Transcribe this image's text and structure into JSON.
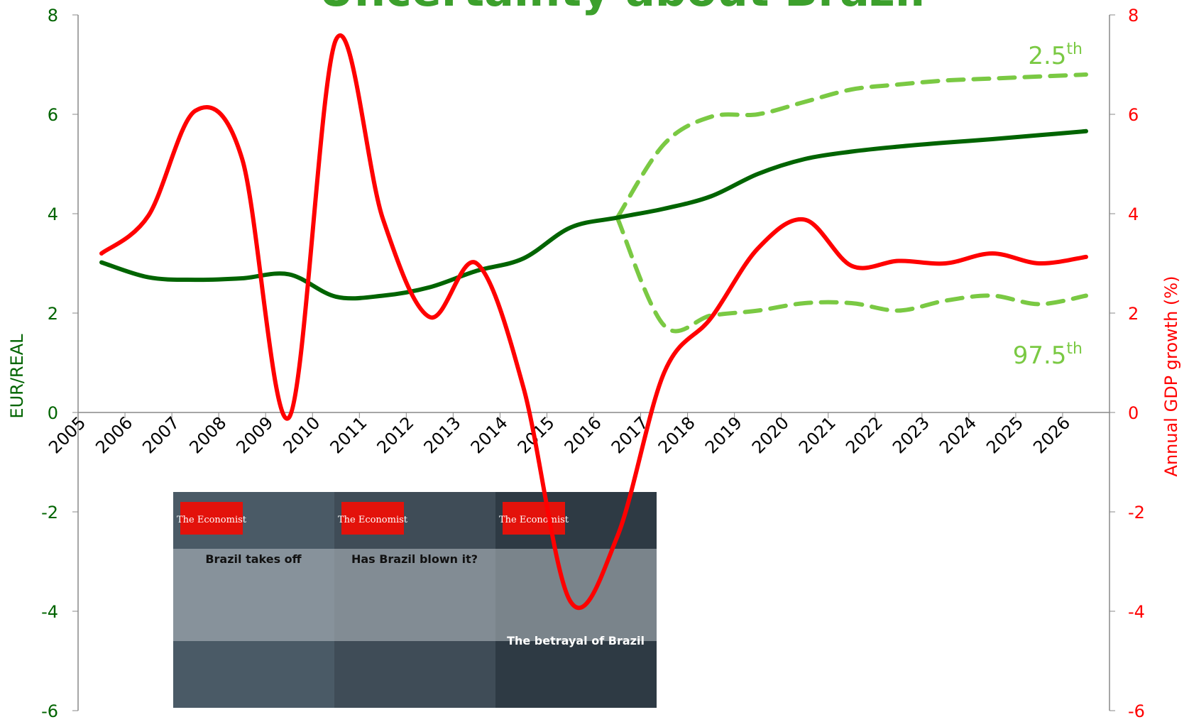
{
  "chart_data": {
    "type": "line",
    "title": "Uncertainty about Brazil",
    "y_label": "EUR/REAL",
    "y2_label": "Annual GDP growth (%)",
    "categories": [
      "2005",
      "2006",
      "2007",
      "2008",
      "2009",
      "2010",
      "2011",
      "2012",
      "2013",
      "2014",
      "2015",
      "2016",
      "2017",
      "2018",
      "2019",
      "2020",
      "2021",
      "2022",
      "2023",
      "2024",
      "2025",
      "2026"
    ],
    "ylim": [
      -6,
      8
    ],
    "yticks": [
      -6,
      -4,
      -2,
      0,
      2,
      4,
      6,
      8
    ],
    "y2lim": [
      -6,
      8
    ],
    "y2ticks": [
      -6,
      -4,
      -2,
      0,
      2,
      4,
      6,
      8
    ],
    "series": [
      {
        "color": "#006400",
        "dash": false,
        "values": [
          3.02,
          2.72,
          2.67,
          2.7,
          2.78,
          2.33,
          2.35,
          2.52,
          2.85,
          3.1,
          3.72,
          3.92,
          4.1,
          4.35,
          4.8,
          5.1,
          5.25,
          5.35,
          5.43,
          5.5,
          5.58,
          5.66
        ]
      },
      {
        "color": "#ff0000",
        "dash": false,
        "axis": "y2",
        "values": [
          3.2,
          3.96,
          6.07,
          5.1,
          -0.1,
          7.5,
          3.9,
          1.92,
          3.0,
          0.5,
          -3.8,
          -2.5,
          0.8,
          1.9,
          3.3,
          3.88,
          2.95,
          3.05,
          3.0,
          3.2,
          3.0,
          3.13
        ]
      },
      {
        "color": "#7ac943",
        "dash": true,
        "values": [
          null,
          null,
          null,
          null,
          null,
          null,
          null,
          null,
          null,
          null,
          null,
          3.92,
          5.4,
          5.95,
          6.0,
          6.25,
          6.5,
          6.6,
          6.68,
          6.72,
          6.76,
          6.8
        ]
      },
      {
        "color": "#7ac943",
        "dash": true,
        "values": [
          null,
          null,
          null,
          null,
          null,
          null,
          null,
          null,
          null,
          null,
          null,
          3.92,
          1.75,
          1.95,
          2.05,
          2.2,
          2.2,
          2.05,
          2.25,
          2.35,
          2.18,
          2.35
        ]
      }
    ],
    "annotations": [
      {
        "text": "2.5",
        "sup": "th"
      },
      {
        "text": "97.5",
        "sup": "th"
      }
    ],
    "covers": [
      {
        "brand": "The Economist",
        "headline": "Brazil takes off"
      },
      {
        "brand": "The Economist",
        "headline": "Has Brazil blown it?"
      },
      {
        "brand": "The Economist",
        "headline": "The betrayal of Brazil"
      }
    ]
  }
}
